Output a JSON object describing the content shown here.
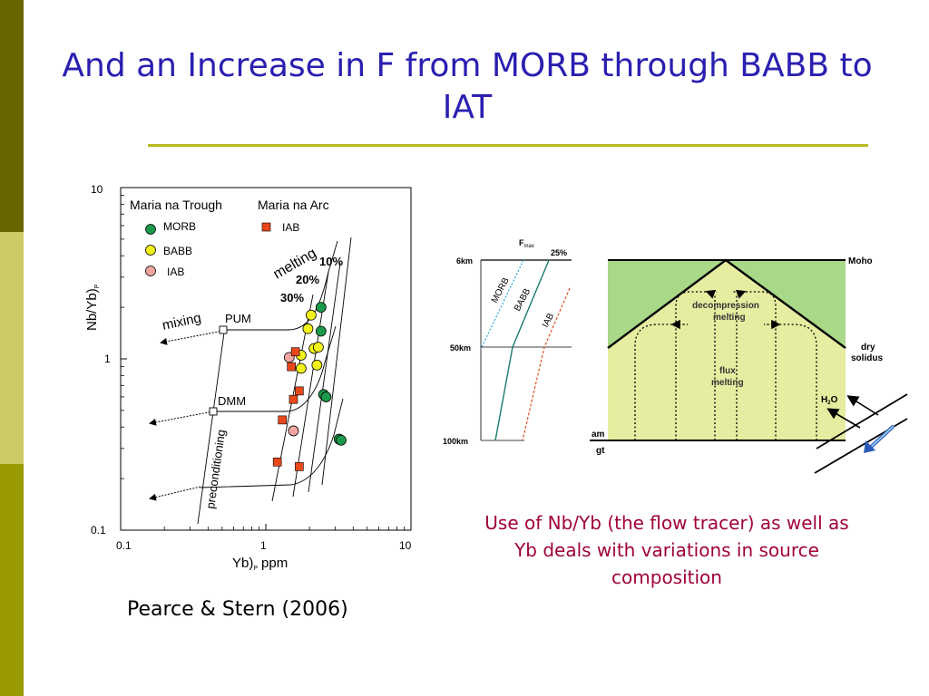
{
  "slide": {
    "title": "And an Increase in F from MORB through BABB to IAT",
    "caption": "Use of Nb/Yb (the flow tracer) as well as Yb deals with variations in source composition",
    "credit": "Pearce & Stern (2006)",
    "colors": {
      "title": "#2a1fb0",
      "caption": "#a0003c",
      "rule": "#b8b820",
      "sidebar_top": "#666600",
      "sidebar_mid": "#cccc66",
      "sidebar_bottom": "#999900"
    }
  },
  "plot": {
    "ylabel_main": "Nb/Yb)",
    "ylabel_sub": "P",
    "xlabel_main": "Yb)",
    "xlabel_sub": "P",
    "xlabel_unit": "ppm",
    "x_ticks": [
      "0.1",
      "1",
      "10"
    ],
    "y_ticks": [
      "10",
      "1",
      "0.1"
    ],
    "group_trough": "Maria na Trough",
    "group_arc": "Maria na Arc",
    "legend_morb": "MORB",
    "legend_babb": "BABB",
    "legend_iab_trough": "IAB",
    "legend_iab_arc": "IAB",
    "label_mixing": "mixing",
    "label_melting": "melting",
    "label_preconditioning": "preconditioning",
    "label_pum": "PUM",
    "label_dmm": "DMM",
    "pct_10": "10%",
    "pct_20": "20%",
    "pct_30": "30%",
    "colors": {
      "morb": "#1a9a4a",
      "babb": "#f2f21a",
      "iab_trough": "#f2a6a0",
      "iab_arc": "#e8481a"
    }
  },
  "chart_data": {
    "type": "scatter",
    "xscale": "log",
    "yscale": "log",
    "xlim": [
      0.1,
      10
    ],
    "ylim": [
      0.1,
      10
    ],
    "xlabel": "Yb)P ppm",
    "ylabel": "Nb/Yb)P",
    "series": [
      {
        "name": "MORB",
        "points": [
          [
            2.4,
            2.0
          ],
          [
            2.4,
            1.45
          ],
          [
            2.5,
            0.62
          ],
          [
            2.6,
            0.6
          ],
          [
            3.2,
            0.34
          ],
          [
            3.3,
            0.335
          ]
        ]
      },
      {
        "name": "BABB",
        "points": [
          [
            2.05,
            1.8
          ],
          [
            1.95,
            1.5
          ],
          [
            2.15,
            1.15
          ],
          [
            2.3,
            1.17
          ],
          [
            1.75,
            1.05
          ],
          [
            2.25,
            0.92
          ],
          [
            1.75,
            0.88
          ]
        ]
      },
      {
        "name": "IAB",
        "points": [
          [
            1.45,
            1.02
          ],
          [
            1.55,
            0.38
          ]
        ]
      },
      {
        "name": "IAB",
        "points": [
          [
            1.6,
            1.1
          ],
          [
            1.5,
            0.9
          ],
          [
            1.7,
            0.65
          ],
          [
            1.55,
            0.58
          ],
          [
            1.3,
            0.44
          ],
          [
            1.2,
            0.25
          ],
          [
            1.7,
            0.235
          ]
        ]
      }
    ]
  },
  "diagram": {
    "fmax_main": "F",
    "fmax_sub": "max",
    "pct_25": "25%",
    "depth_6": "6km",
    "depth_50": "50km",
    "depth_100": "100km",
    "curve_morb": "MORB",
    "curve_babb": "BABB",
    "curve_iab": "IAB",
    "moho": "Moho",
    "dry": "dry",
    "solidus": "solidus",
    "decomp_1": "decompression",
    "decomp_2": "melting",
    "flux_1": "flux",
    "flux_2": "melting",
    "h2o_main": "H",
    "h2o_sub": "2",
    "h2o_end": "O",
    "am": "am",
    "gt": "gt",
    "colors": {
      "upper_mantle": "#a8d888",
      "wedge": "#e6eca0",
      "morb_line": "#22a8d8",
      "babb_line": "#1a7a70",
      "iab_line": "#e05020"
    }
  }
}
